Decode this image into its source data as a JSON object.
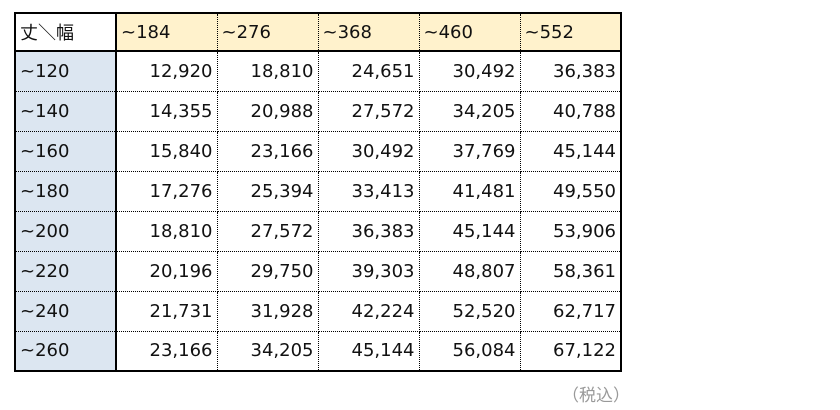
{
  "table": {
    "header": [
      "丈＼幅",
      "~184",
      "~276",
      "~368",
      "~460",
      "~552"
    ],
    "rows": [
      [
        "~120",
        "12,920",
        "18,810",
        "24,651",
        "30,492",
        "36,383"
      ],
      [
        "~140",
        "14,355",
        "20,988",
        "27,572",
        "34,205",
        "40,788"
      ],
      [
        "~160",
        "15,840",
        "23,166",
        "30,492",
        "37,769",
        "45,144"
      ],
      [
        "~180",
        "17,276",
        "25,394",
        "33,413",
        "41,481",
        "49,550"
      ],
      [
        "~200",
        "18,810",
        "27,572",
        "36,383",
        "45,144",
        "53,906"
      ],
      [
        "~220",
        "20,196",
        "29,750",
        "39,303",
        "48,807",
        "58,361"
      ],
      [
        "~240",
        "21,731",
        "31,928",
        "42,224",
        "52,520",
        "62,717"
      ],
      [
        "~260",
        "23,166",
        "34,205",
        "45,144",
        "56,084",
        "67,122"
      ]
    ]
  },
  "note": "（税込）"
}
